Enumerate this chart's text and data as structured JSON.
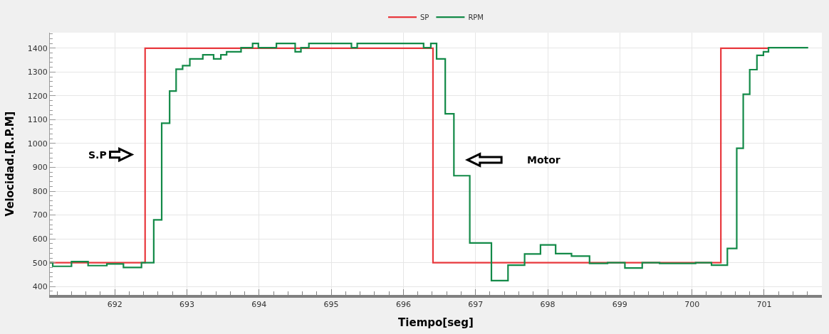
{
  "chart_data": {
    "type": "step",
    "xlabel": "Tiempo[seg]",
    "ylabel": "Velocidad.[R.P.M]",
    "xlim": [
      691.1,
      701.8
    ],
    "ylim": [
      365,
      1465
    ],
    "xticks": [
      692,
      693,
      694,
      695,
      696,
      697,
      698,
      699,
      700,
      701
    ],
    "yticks": [
      400,
      500,
      600,
      700,
      800,
      900,
      1000,
      1100,
      1200,
      1300,
      1400
    ],
    "grid": true,
    "legend": "top",
    "line_style": "solid",
    "marker": "none",
    "series": [
      {
        "name": "SP",
        "color": "#e8383d",
        "x": [
          691.1,
          692.42,
          696.41,
          700.4,
          701.05
        ],
        "values": [
          500,
          1400,
          500,
          1400,
          1400
        ]
      },
      {
        "name": "RPM",
        "color": "#138a48",
        "x": [
          691.1,
          691.14,
          691.4,
          691.63,
          691.89,
          692.12,
          692.37,
          692.54,
          692.65,
          692.76,
          692.85,
          692.94,
          693.04,
          693.22,
          693.37,
          693.47,
          693.55,
          693.75,
          693.91,
          693.99,
          694.24,
          694.5,
          694.58,
          694.69,
          695.28,
          695.36,
          696.28,
          696.38,
          696.46,
          696.58,
          696.7,
          696.92,
          697.22,
          697.45,
          697.68,
          697.9,
          698.11,
          698.33,
          698.58,
          698.83,
          699.07,
          699.31,
          699.55,
          700.05,
          700.27,
          700.49,
          700.62,
          700.71,
          700.8,
          700.9,
          700.99,
          701.06,
          701.61
        ],
        "values": [
          500,
          485,
          505,
          488,
          495,
          480,
          500,
          680,
          1085,
          1220,
          1312,
          1327,
          1355,
          1372,
          1355,
          1372,
          1385,
          1402,
          1420,
          1402,
          1420,
          1385,
          1402,
          1420,
          1402,
          1420,
          1402,
          1420,
          1355,
          1125,
          865,
          583,
          425,
          490,
          537,
          575,
          538,
          528,
          497,
          500,
          478,
          500,
          497,
          500,
          490,
          560,
          980,
          1207,
          1310,
          1370,
          1385,
          1402,
          1402
        ]
      }
    ],
    "annotations": [
      "S.P",
      "Motor"
    ]
  }
}
